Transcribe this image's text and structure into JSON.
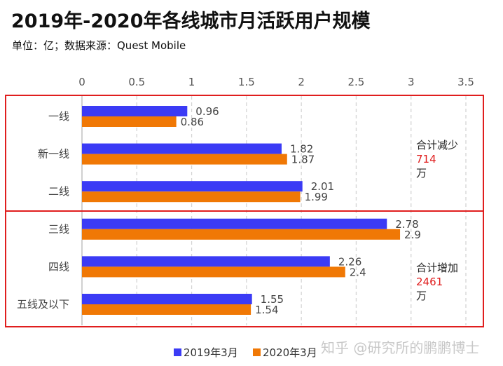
{
  "header": {
    "title": "2019年-2020年各线城市月活跃用户规模",
    "subtitle": "单位：亿；数据来源：Quest Mobile"
  },
  "chart_data": {
    "type": "bar",
    "orientation": "horizontal",
    "title": "2019年-2020年各线城市月活跃用户规模",
    "subtitle": "单位：亿；数据来源：Quest Mobile",
    "xlabel": "",
    "ylabel": "",
    "xlim": [
      0,
      3.5
    ],
    "x_ticks": [
      "0",
      "0.5",
      "1",
      "1.5",
      "2",
      "2.5",
      "3",
      "3.5"
    ],
    "x_tick_values": [
      0,
      0.5,
      1,
      1.5,
      2,
      2.5,
      3,
      3.5
    ],
    "grid": true,
    "categories": [
      "一线",
      "新一线",
      "二线",
      "三线",
      "四线",
      "五线及以下"
    ],
    "series": [
      {
        "name": "2019年3月",
        "color": "#3b3bf5",
        "values": [
          0.96,
          1.82,
          2.01,
          2.78,
          2.26,
          1.55
        ],
        "labels": [
          "0.96",
          "1.82",
          "2.01",
          "2.78",
          "2.26",
          "1.55"
        ]
      },
      {
        "name": "2020年3月",
        "color": "#f07805",
        "values": [
          0.86,
          1.87,
          1.99,
          2.9,
          2.4,
          1.54
        ],
        "labels": [
          "0.86",
          "1.87",
          "1.99",
          "2.9",
          "2.4",
          "1.54"
        ]
      }
    ],
    "legend_position": "bottom",
    "annotations": [
      {
        "group": "一线/新一线/二线",
        "line1": "合计减少",
        "value": "714",
        "unit": "万"
      },
      {
        "group": "三线/四线/五线及以下",
        "line1": "合计增加",
        "value": "2461",
        "unit": "万"
      }
    ],
    "highlight_color": "#e01e1e"
  },
  "legend": {
    "items": [
      {
        "label": "2019年3月",
        "color": "#3b3bf5"
      },
      {
        "label": "2020年3月",
        "color": "#f07805"
      }
    ]
  },
  "watermark": "知乎 @研究所的鹏鹏博士"
}
